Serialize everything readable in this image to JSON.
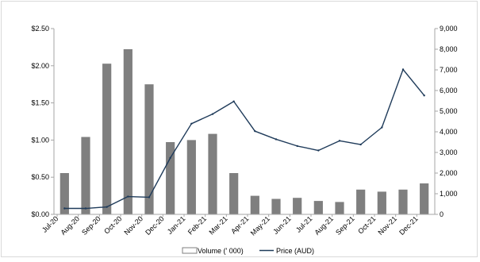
{
  "chart_data": {
    "type": "bar",
    "title": "",
    "xlabel": "",
    "ylabel": "",
    "categories": [
      "Jul-20",
      "Aug-20",
      "Sep-20",
      "Oct-20",
      "Nov-20",
      "Dec-20",
      "Jan-21",
      "Feb-21",
      "Mar-21",
      "Apr-21",
      "May-21",
      "Jun-21",
      "Jul-21",
      "Aug-21",
      "Sep-21",
      "Oct-21",
      "Nov-21",
      "Dec-21"
    ],
    "left_axis": {
      "unit": "Price (AUD)",
      "ylim": [
        0,
        2.5
      ],
      "tick_labels": [
        "$0.00",
        "$0.50",
        "$1.00",
        "$1.50",
        "$2.00",
        "$2.50"
      ]
    },
    "right_axis": {
      "unit": "Volume (' 000)",
      "ylim": [
        0,
        9000
      ],
      "tick_labels": [
        "0",
        "1,000",
        "2,000",
        "3,000",
        "4,000",
        "5,000",
        "6,000",
        "7,000",
        "8,000",
        "9,000"
      ]
    },
    "series": [
      {
        "name": "Volume (' 000)",
        "type": "bar",
        "axis": "right",
        "color": "#7f7f7f",
        "monthly_peak_values": [
          2000,
          3750,
          7300,
          8000,
          6300,
          3500,
          3600,
          3900,
          2000,
          900,
          750,
          800,
          650,
          600,
          1200,
          1100,
          1200,
          1500
        ]
      },
      {
        "name": "Price (AUD)",
        "type": "line",
        "axis": "left",
        "color": "#1f3b5a",
        "values": [
          0.08,
          0.08,
          0.1,
          0.24,
          0.23,
          0.76,
          1.22,
          1.35,
          1.52,
          1.12,
          1.01,
          0.92,
          0.86,
          0.99,
          0.94,
          1.17,
          1.95,
          1.6
        ]
      }
    ],
    "legend": {
      "position": "bottom",
      "items": [
        "Volume (' 000)",
        "Price (AUD)"
      ]
    },
    "grid": false
  }
}
